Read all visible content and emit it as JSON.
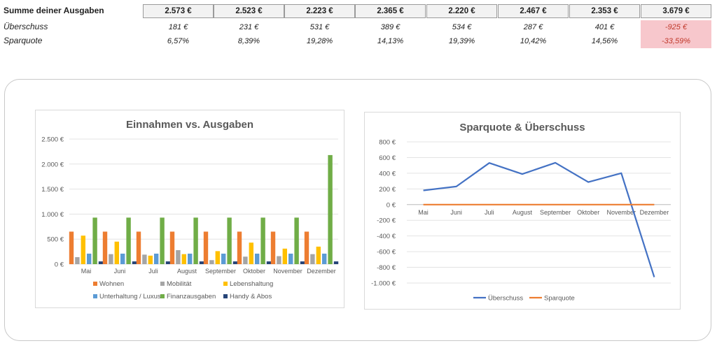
{
  "summary": {
    "total_label": "Summe deiner Ausgaben",
    "surplus_label": "Überschuss",
    "rate_label": "Sparquote",
    "totals": [
      "2.573 €",
      "2.523 €",
      "2.223 €",
      "2.365 €",
      "2.220 €",
      "2.467 €",
      "2.353 €",
      "3.679 €"
    ],
    "surplus": [
      "181 €",
      "231 €",
      "531 €",
      "389 €",
      "534 €",
      "287 €",
      "401 €",
      "-925 €"
    ],
    "rates": [
      "6,57%",
      "8,39%",
      "19,28%",
      "14,13%",
      "19,39%",
      "10,42%",
      "14,56%",
      "-33,59%"
    ]
  },
  "colors": {
    "Wohnen": "#ed7d31",
    "Mobilität": "#a5a5a5",
    "Lebenshaltung": "#ffc000",
    "Unterhaltung / Luxus": "#5b9bd5",
    "Finanzausgaben": "#70ad47",
    "Handy & Abos": "#264478",
    "Überschuss": "#4472c4",
    "Sparquote": "#ed7d31",
    "negative_fill": "#f7c7cc",
    "negative_text": "#c0392b"
  },
  "chart_data": [
    {
      "type": "bar",
      "title": "Einnahmen vs. Ausgaben",
      "categories": [
        "Mai",
        "Juni",
        "Juli",
        "August",
        "September",
        "Oktober",
        "November",
        "Dezember"
      ],
      "ylim": [
        0,
        2500
      ],
      "yticks": [
        0,
        500,
        1000,
        1500,
        2000,
        2500
      ],
      "ytick_labels": [
        "0 €",
        "500 €",
        "1.000 €",
        "1.500 €",
        "2.000 €",
        "2.500 €"
      ],
      "series": [
        {
          "name": "Wohnen",
          "values": [
            650,
            650,
            650,
            650,
            650,
            650,
            650,
            650
          ]
        },
        {
          "name": "Mobilität",
          "values": [
            140,
            200,
            190,
            280,
            80,
            150,
            160,
            200
          ]
        },
        {
          "name": "Lebenshaltung",
          "values": [
            570,
            450,
            170,
            200,
            260,
            430,
            310,
            350
          ]
        },
        {
          "name": "Unterhaltung / Luxus",
          "values": [
            210,
            210,
            210,
            210,
            210,
            210,
            210,
            210
          ]
        },
        {
          "name": "Finanzausgaben",
          "values": [
            930,
            930,
            930,
            930,
            930,
            930,
            930,
            2180
          ]
        },
        {
          "name": "Handy & Abos",
          "values": [
            55,
            55,
            55,
            55,
            55,
            55,
            55,
            55
          ]
        }
      ],
      "legend": "bottom"
    },
    {
      "type": "line",
      "title": "Sparquote & Überschuss",
      "categories": [
        "Mai",
        "Juni",
        "Juli",
        "August",
        "September",
        "Oktober",
        "November",
        "Dezember"
      ],
      "ylim": [
        -1000,
        800
      ],
      "yticks": [
        -1000,
        -800,
        -600,
        -400,
        -200,
        0,
        200,
        400,
        600,
        800
      ],
      "ytick_labels": [
        "-1.000 €",
        "-800 €",
        "-600 €",
        "-400 €",
        "-200 €",
        "0 €",
        "200 €",
        "400 €",
        "600 €",
        "800 €"
      ],
      "series": [
        {
          "name": "Überschuss",
          "values": [
            181,
            231,
            531,
            389,
            534,
            287,
            401,
            -925
          ]
        },
        {
          "name": "Sparquote",
          "values": [
            0.0657,
            0.0839,
            0.1928,
            0.1413,
            0.1939,
            0.1042,
            0.1456,
            -0.3359
          ]
        }
      ],
      "legend": "bottom"
    }
  ]
}
